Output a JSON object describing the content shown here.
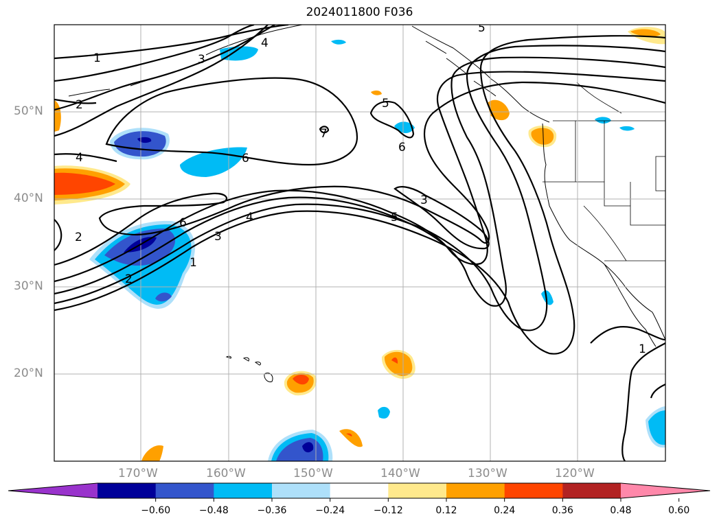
{
  "title": "2024011800 F036",
  "lat_labels": [
    "50°N",
    "40°N",
    "30°N",
    "20°N"
  ],
  "lon_labels": [
    "170°W",
    "160°W",
    "150°W",
    "140°W",
    "130°W",
    "120°W"
  ],
  "contour_labels": [
    "1",
    "2",
    "3",
    "4",
    "5",
    "6",
    "7",
    "1",
    "2",
    "3",
    "4",
    "5",
    "6",
    "1",
    "2",
    "3",
    "4",
    "5",
    "6"
  ],
  "colorbar": {
    "colors": [
      "#9933cc",
      "#000099",
      "#3355cc",
      "#00bbf5",
      "#aee0fa",
      "#ffffff",
      "#ffe98c",
      "#ffa000",
      "#ff4500",
      "#b22222",
      "#ff88aa"
    ],
    "tick_labels": [
      "−0.60",
      "−0.48",
      "−0.36",
      "−0.24",
      "−0.12",
      "0.12",
      "0.24",
      "0.36",
      "0.48",
      "0.60"
    ]
  }
}
